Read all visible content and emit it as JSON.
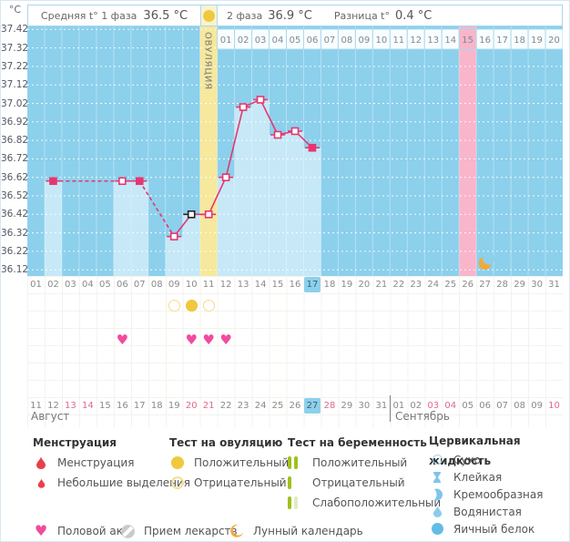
{
  "unit_label": "°C",
  "glyphs": {
    "heart": "♥"
  },
  "header": {
    "avg_phase1_label": "Средняя t° 1 фаза",
    "avg_phase1_value": "36.5 °C",
    "phase2_label": "2 фаза",
    "phase2_value": "36.9 °C",
    "diff_label": "Разница t°",
    "diff_value": "0.4 °C"
  },
  "colors": {
    "chart_bg": "#8cd0ec",
    "column_fill": "#c6e8f7",
    "ovulation_column": "#f6e89c",
    "period_expected_column": "#f9b5ca",
    "top_cell_bg": "#fafdfe",
    "top_cell_border": "#a9d9ef",
    "line": "#e63671",
    "today_highlight": "#8dd0ec",
    "weekend_text": "#e2688f",
    "positive_yellow": "#f0c93e",
    "heart_pink": "#f24b9d",
    "moon_orange": "#f2a93b",
    "green_bar": "#9fc11e"
  },
  "chart_data": {
    "type": "line",
    "title": "График базальной температуры",
    "ylabel": "°C",
    "ylim": [
      36.12,
      37.42
    ],
    "y_ticks": [
      "37.42",
      "37.32",
      "37.22",
      "37.12",
      "37.02",
      "36.92",
      "36.82",
      "36.72",
      "36.62",
      "36.52",
      "36.42",
      "36.32",
      "36.22",
      "36.12"
    ],
    "grid": "dotted-horizontal",
    "cycle_day_count": 31,
    "cycle_day_labels": [
      "01",
      "02",
      "03",
      "04",
      "05",
      "06",
      "07",
      "08",
      "09",
      "10",
      "11",
      "12",
      "13",
      "14",
      "15",
      "16",
      "17",
      "18",
      "19",
      "20",
      "21",
      "22",
      "23",
      "24",
      "25",
      "26",
      "27",
      "28",
      "29",
      "30",
      "31"
    ],
    "today_cycle_day": 17,
    "ovulation": {
      "day": 11,
      "label": "ОВУЛЯЦИЯ"
    },
    "expected_period_cycle_day": 26,
    "phase2_days": {
      "start_cycle_day": 12,
      "highlighted_label": "15",
      "labels": [
        "01",
        "02",
        "03",
        "04",
        "05",
        "06",
        "07",
        "08",
        "09",
        "10",
        "11",
        "12",
        "13",
        "14",
        "15",
        "16",
        "17",
        "18",
        "19",
        "20"
      ]
    },
    "temperatures": [
      {
        "day": 2,
        "value": 36.6,
        "marker": "filled"
      },
      {
        "day": 6,
        "value": 36.6,
        "marker": "open"
      },
      {
        "day": 7,
        "value": 36.6,
        "marker": "filled"
      },
      {
        "day": 9,
        "value": 36.3,
        "marker": "open"
      },
      {
        "day": 10,
        "value": 36.42,
        "marker": "black"
      },
      {
        "day": 11,
        "value": 36.42,
        "marker": "open"
      },
      {
        "day": 12,
        "value": 36.62,
        "marker": "open"
      },
      {
        "day": 13,
        "value": 37.0,
        "marker": "open"
      },
      {
        "day": 14,
        "value": 37.04,
        "marker": "open"
      },
      {
        "day": 15,
        "value": 36.85,
        "marker": "open"
      },
      {
        "day": 16,
        "value": 36.87,
        "marker": "open"
      },
      {
        "day": 17,
        "value": 36.78,
        "marker": "filled"
      }
    ],
    "ovulation_tests": [
      {
        "cycle_day": 9,
        "result": "negative"
      },
      {
        "cycle_day": 10,
        "result": "positive"
      },
      {
        "cycle_day": 11,
        "result": "negative"
      }
    ],
    "intercourse_cycle_days": [
      6,
      10,
      11,
      12
    ],
    "moon_cycle_day": 27,
    "calendar": {
      "month_labels": [
        "Август",
        "Сентябрь"
      ],
      "dates": [
        {
          "label": "11"
        },
        {
          "label": "12"
        },
        {
          "label": "13",
          "weekend": true
        },
        {
          "label": "14",
          "weekend": true
        },
        {
          "label": "15"
        },
        {
          "label": "16"
        },
        {
          "label": "17"
        },
        {
          "label": "18"
        },
        {
          "label": "19"
        },
        {
          "label": "20",
          "weekend": true
        },
        {
          "label": "21",
          "weekend": true
        },
        {
          "label": "22"
        },
        {
          "label": "23"
        },
        {
          "label": "24"
        },
        {
          "label": "25"
        },
        {
          "label": "26"
        },
        {
          "label": "27",
          "today": true
        },
        {
          "label": "28",
          "weekend": true
        },
        {
          "label": "29"
        },
        {
          "label": "30"
        },
        {
          "label": "31"
        },
        {
          "label": "01"
        },
        {
          "label": "02"
        },
        {
          "label": "03",
          "weekend": true
        },
        {
          "label": "04",
          "weekend": true
        },
        {
          "label": "05"
        },
        {
          "label": "06"
        },
        {
          "label": "07"
        },
        {
          "label": "08"
        },
        {
          "label": "09"
        },
        {
          "label": "10",
          "weekend": true
        }
      ]
    }
  },
  "legend": {
    "groups": [
      {
        "title": "Менструация",
        "items": [
          {
            "icon": "menstruation-drop-icon",
            "label": "Менструация"
          },
          {
            "icon": "spotting-drop-icon",
            "label": "Небольшие выделения"
          }
        ]
      },
      {
        "title": "Тест на овуляцию",
        "items": [
          {
            "icon": "ovulation-positive-icon",
            "label": "Положительный"
          },
          {
            "icon": "ovulation-negative-icon",
            "label": "Отрицательный"
          }
        ]
      },
      {
        "title": "Тест на беременность",
        "items": [
          {
            "icon": "pregnancy-positive-bars-icon",
            "label": "Положительный"
          },
          {
            "icon": "pregnancy-negative-bar-icon",
            "label": "Отрицательный"
          },
          {
            "icon": "pregnancy-faint-bars-icon",
            "label": "Слабоположительный"
          }
        ]
      },
      {
        "title": "Цервикальная жидкость",
        "items": [
          {
            "icon": "cf-dry-icon",
            "label": "Сухо"
          },
          {
            "icon": "cf-sticky-icon",
            "label": "Клейкая"
          },
          {
            "icon": "cf-creamy-icon",
            "label": "Кремообразная"
          },
          {
            "icon": "cf-watery-icon",
            "label": "Водянистая"
          },
          {
            "icon": "cf-eggwhite-icon",
            "label": "Яичный белок"
          }
        ]
      }
    ],
    "footer_items": [
      {
        "icon": "intercourse-heart-icon",
        "label": "Половой акт"
      },
      {
        "icon": "medication-pill-icon",
        "label": "Прием лекарств"
      },
      {
        "icon": "lunar-moon-icon",
        "label": "Лунный календарь"
      }
    ]
  }
}
